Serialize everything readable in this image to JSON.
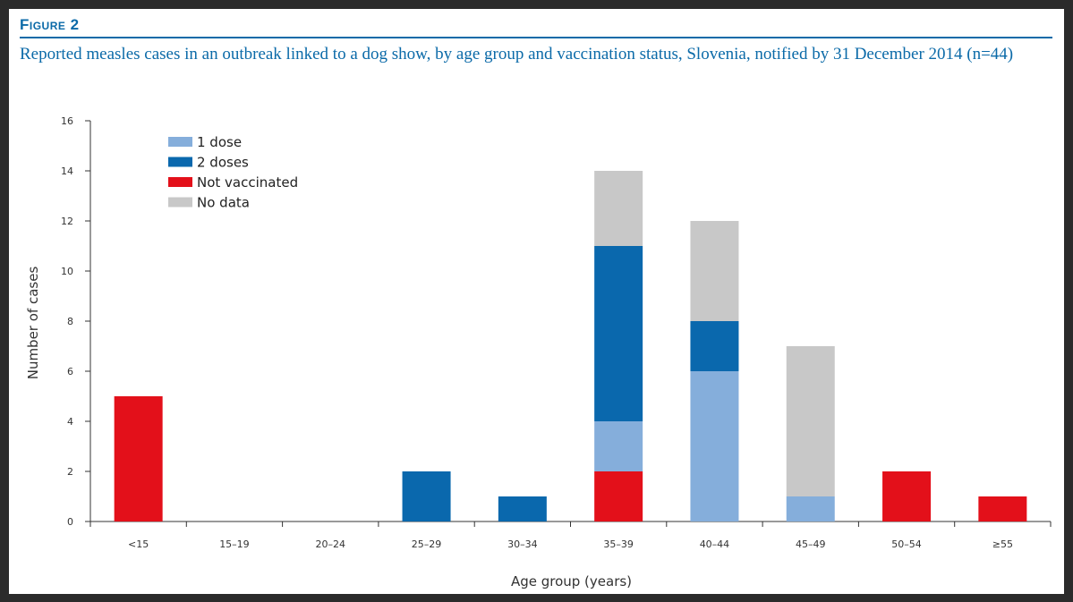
{
  "figure_label": "Figure 2",
  "title": "Reported measles cases in an outbreak linked to a dog show, by age group and vaccination status, Slovenia, notified by 31 December 2014 (n=44)",
  "chart_data": {
    "type": "bar",
    "stacked": true,
    "xlabel": "Age group (years)",
    "ylabel": "Number of cases",
    "ylim": [
      0,
      16
    ],
    "yticks": [
      0,
      2,
      4,
      6,
      8,
      10,
      12,
      14,
      16
    ],
    "grid": false,
    "legend_position": "top-left",
    "categories": [
      "<15",
      "15–19",
      "20–24",
      "25–29",
      "30–34",
      "35–39",
      "40–44",
      "45–49",
      "50–54",
      "≥55"
    ],
    "series": [
      {
        "name": "Not vaccinated",
        "color": "#e3101a",
        "values": [
          5,
          0,
          0,
          0,
          0,
          2,
          0,
          0,
          2,
          1
        ]
      },
      {
        "name": "1 dose",
        "color": "#85aedb",
        "values": [
          0,
          0,
          0,
          0,
          0,
          2,
          6,
          1,
          0,
          0
        ]
      },
      {
        "name": "2 doses",
        "color": "#0a68ad",
        "values": [
          0,
          0,
          0,
          2,
          1,
          7,
          2,
          0,
          0,
          0
        ]
      },
      {
        "name": "No data",
        "color": "#c8c8c8",
        "values": [
          0,
          0,
          0,
          0,
          0,
          3,
          4,
          6,
          0,
          0
        ]
      }
    ],
    "legend_order": [
      "1 dose",
      "2 doses",
      "Not vaccinated",
      "No data"
    ]
  }
}
